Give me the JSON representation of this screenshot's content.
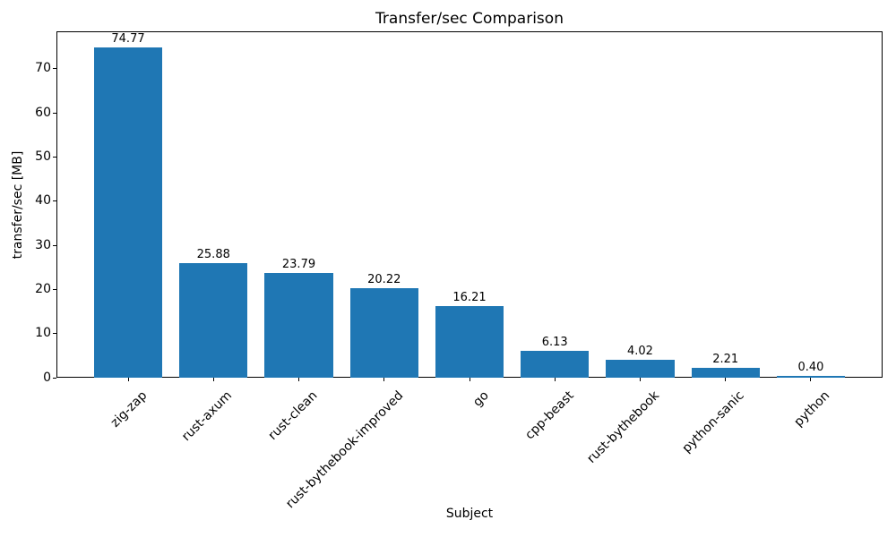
{
  "chart_data": {
    "type": "bar",
    "title": "Transfer/sec Comparison",
    "xlabel": "Subject",
    "ylabel": "transfer/sec [MB]",
    "categories": [
      "zig-zap",
      "rust-axum",
      "rust-clean",
      "rust-bythebook-improved",
      "go",
      "cpp-beast",
      "rust-bythebook",
      "python-sanic",
      "python"
    ],
    "values": [
      74.77,
      25.88,
      23.79,
      20.22,
      16.21,
      6.13,
      4.02,
      2.21,
      0.4
    ],
    "value_labels": [
      "74.77",
      "25.88",
      "23.79",
      "20.22",
      "16.21",
      "6.13",
      "4.02",
      "2.21",
      "0.40"
    ],
    "yticks": [
      0,
      10,
      20,
      30,
      40,
      50,
      60,
      70
    ],
    "ylim": [
      0,
      78.5
    ],
    "bar_color": "#1f77b4",
    "axis_color": "#000000",
    "text_color": "#000000",
    "background_color": "#ffffff",
    "bar_width_fraction": 0.8,
    "xtick_rotation_deg": 45,
    "grid": false,
    "legend": "none"
  }
}
